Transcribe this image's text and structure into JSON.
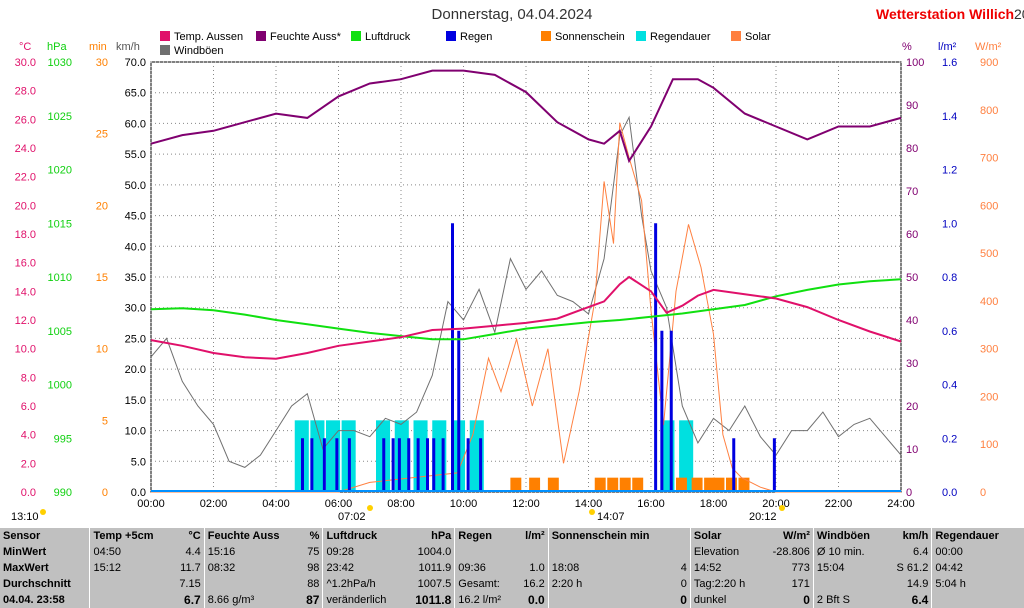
{
  "header": {
    "title": "Donnerstag, 04.04.2024",
    "station": "Wetterstation Willich",
    "station_extra": "20"
  },
  "legend": [
    {
      "label": "Temp. Aussen",
      "color": "#e0106a"
    },
    {
      "label": "Feuchte Auss*",
      "color": "#800070"
    },
    {
      "label": "Luftdruck",
      "color": "#10e010"
    },
    {
      "label": "Regen",
      "color": "#0000e0"
    },
    {
      "label": "Sonnenschein",
      "color": "#ff8000"
    },
    {
      "label": "Regendauer",
      "color": "#00e0e0"
    },
    {
      "label": "Solar",
      "color": "#ff8040"
    },
    {
      "label": "Windböen",
      "color": "#707070"
    }
  ],
  "axis_units": {
    "temp": "°C",
    "hpa": "hPa",
    "min": "min",
    "kmh": "km/h",
    "pct": "%",
    "lm2": "l/m²",
    "wm2": "W/m²"
  },
  "markers": {
    "sunrise": "07:02",
    "noon": "14:07",
    "sunset": "20:12",
    "left_time": "13:10"
  },
  "chart_data": {
    "type": "line",
    "x_ticks": [
      "00:00",
      "02:00",
      "04:00",
      "06:00",
      "08:00",
      "10:00",
      "12:00",
      "14:00",
      "16:00",
      "18:00",
      "20:00",
      "22:00",
      "24:00"
    ],
    "axes": {
      "temp": {
        "ticks": [
          "30.0",
          "28.0",
          "26.0",
          "24.0",
          "22.0",
          "20.0",
          "18.0",
          "16.0",
          "14.0",
          "12.0",
          "10.0",
          "8.0",
          "6.0",
          "4.0",
          "2.0",
          "0.0"
        ],
        "color": "#e0106a"
      },
      "hpa": {
        "ticks": [
          "1030",
          "1025",
          "1020",
          "1015",
          "1010",
          "1005",
          "1000",
          "995",
          "990"
        ],
        "color": "#10d010"
      },
      "min": {
        "ticks": [
          "30",
          "25",
          "20",
          "15",
          "10",
          "5",
          "0"
        ],
        "color": "#ff8000"
      },
      "kmh": {
        "ticks": [
          "70.0",
          "65.0",
          "60.0",
          "55.0",
          "50.0",
          "45.0",
          "40.0",
          "35.0",
          "30.0",
          "25.0",
          "20.0",
          "15.0",
          "10.0",
          "5.0",
          "0.0"
        ],
        "color": "#000000"
      },
      "pct": {
        "ticks": [
          "100",
          "90",
          "80",
          "70",
          "60",
          "50",
          "40",
          "30",
          "20",
          "10",
          "0"
        ],
        "color": "#800070"
      },
      "lm2": {
        "ticks": [
          "1.6",
          "1.4",
          "1.2",
          "1.0",
          "0.8",
          "0.6",
          "0.4",
          "0.2",
          "0.0"
        ],
        "color": "#0000c0"
      },
      "wm2": {
        "ticks": [
          "900",
          "800",
          "700",
          "600",
          "500",
          "400",
          "300",
          "200",
          "100",
          "0"
        ],
        "color": "#ff8040"
      }
    },
    "series": [
      {
        "name": "Temp. Aussen",
        "unit": "°C",
        "x": [
          0,
          1,
          2,
          3,
          4,
          5,
          6,
          7,
          8,
          9,
          10,
          11,
          12,
          13,
          14,
          14.5,
          15,
          15.3,
          16,
          16.5,
          17,
          17.5,
          18,
          19,
          20,
          21,
          22,
          23,
          24
        ],
        "y": [
          10.6,
          10.2,
          9.7,
          9.4,
          9.3,
          9.7,
          10.2,
          10.5,
          10.8,
          11.3,
          11.4,
          11.6,
          11.8,
          12.1,
          12.9,
          13.3,
          14.5,
          15.0,
          14.0,
          12.5,
          13.0,
          13.7,
          14.1,
          13.8,
          13.5,
          12.9,
          12.0,
          11.2,
          10.5
        ]
      },
      {
        "name": "Feuchte Auss*",
        "unit": "%",
        "x": [
          0,
          1,
          2,
          3,
          4,
          5,
          6,
          7,
          8,
          9,
          10,
          11,
          12,
          13,
          14,
          14.5,
          15,
          15.3,
          16,
          16.7,
          17.5,
          18,
          19,
          20,
          21,
          22,
          23,
          24
        ],
        "y": [
          81,
          83,
          84,
          86,
          88,
          87,
          92,
          95,
          96,
          98,
          98,
          97,
          93,
          86,
          82,
          81,
          84,
          77,
          85,
          96,
          96,
          94,
          88,
          85,
          82,
          85,
          85,
          87
        ]
      },
      {
        "name": "Luftdruck",
        "unit": "hPa",
        "x": [
          0,
          1,
          2,
          3,
          4,
          5,
          6,
          7,
          8,
          9,
          10,
          11,
          12,
          13,
          14,
          15,
          16,
          17,
          18,
          19,
          20,
          21,
          22,
          23,
          24
        ],
        "y": [
          1007.0,
          1007.1,
          1006.9,
          1006.5,
          1006.0,
          1005.6,
          1005.2,
          1004.8,
          1004.5,
          1004.2,
          1004.2,
          1004.7,
          1005.2,
          1005.5,
          1005.8,
          1006.0,
          1006.3,
          1006.6,
          1007.0,
          1007.4,
          1008.2,
          1008.8,
          1009.3,
          1009.6,
          1009.8
        ]
      },
      {
        "name": "Regen",
        "unit": "l/m²",
        "bars": [
          [
            4.8,
            0.2
          ],
          [
            5.1,
            0.2
          ],
          [
            5.5,
            0.2
          ],
          [
            5.9,
            0.2
          ],
          [
            6.3,
            0.2
          ],
          [
            7.4,
            0.2
          ],
          [
            7.7,
            0.2
          ],
          [
            7.9,
            0.2
          ],
          [
            8.2,
            0.2
          ],
          [
            8.5,
            0.2
          ],
          [
            8.8,
            0.2
          ],
          [
            9.0,
            0.2
          ],
          [
            9.3,
            0.2
          ],
          [
            9.6,
            1.0
          ],
          [
            9.8,
            0.6
          ],
          [
            10.1,
            0.2
          ],
          [
            10.5,
            0.2
          ],
          [
            16.1,
            1.0
          ],
          [
            16.3,
            0.6
          ],
          [
            16.6,
            0.6
          ],
          [
            18.6,
            0.2
          ],
          [
            19.9,
            0.2
          ]
        ]
      },
      {
        "name": "Sonnenschein",
        "unit": "min",
        "bars": [
          [
            11.5,
            1
          ],
          [
            12.1,
            1
          ],
          [
            12.7,
            1
          ],
          [
            14.2,
            1
          ],
          [
            14.6,
            1
          ],
          [
            15.0,
            1
          ],
          [
            15.4,
            1
          ],
          [
            16.8,
            1
          ],
          [
            17.3,
            1
          ],
          [
            17.7,
            1
          ],
          [
            18.0,
            1
          ],
          [
            18.4,
            1
          ],
          [
            18.8,
            1
          ]
        ]
      },
      {
        "name": "Regendauer",
        "unit": "min",
        "bars": [
          [
            4.6,
            5
          ],
          [
            5.1,
            5
          ],
          [
            5.6,
            5
          ],
          [
            6.1,
            5
          ],
          [
            7.2,
            5
          ],
          [
            7.8,
            5
          ],
          [
            8.4,
            5
          ],
          [
            9.0,
            5
          ],
          [
            9.6,
            5
          ],
          [
            10.2,
            5
          ],
          [
            16.3,
            5
          ],
          [
            16.9,
            5
          ]
        ]
      },
      {
        "name": "Solar",
        "unit": "W/m²",
        "x": [
          0,
          6,
          7,
          9.8,
          10.3,
          10.8,
          11.2,
          11.7,
          12.2,
          12.7,
          13.2,
          13.7,
          14.2,
          14.5,
          14.8,
          15.0,
          15.3,
          15.7,
          16.0,
          16.4,
          16.8,
          17.2,
          17.6,
          18.0,
          18.3,
          18.6,
          18.9,
          19.5,
          20,
          24
        ],
        "y": [
          0,
          0,
          20,
          40,
          120,
          280,
          210,
          320,
          180,
          300,
          60,
          210,
          400,
          650,
          520,
          773,
          700,
          610,
          380,
          140,
          420,
          560,
          470,
          330,
          120,
          50,
          30,
          10,
          0,
          0
        ]
      },
      {
        "name": "Windböen",
        "unit": "km/h",
        "x": [
          0,
          0.5,
          1,
          1.5,
          2,
          2.5,
          3,
          3.5,
          4,
          4.5,
          5,
          5.5,
          6,
          6.5,
          7,
          7.5,
          8,
          8.5,
          9,
          9.5,
          10,
          10.5,
          11,
          11.5,
          12,
          12.5,
          13,
          13.5,
          14,
          14.5,
          15,
          15.3,
          15.7,
          16,
          16.5,
          17,
          17.5,
          18,
          18.5,
          19,
          19.5,
          20,
          20.5,
          21,
          21.5,
          22,
          22.5,
          23,
          23.5,
          24
        ],
        "y": [
          22,
          25,
          18,
          14,
          11,
          5,
          4,
          6,
          10,
          14,
          16,
          7,
          10,
          10,
          9,
          12,
          11,
          13,
          19,
          31,
          28,
          33,
          26,
          38,
          33,
          36,
          32,
          31,
          29,
          38,
          58,
          61,
          45,
          36,
          30,
          14,
          8,
          12,
          10,
          14,
          9,
          6,
          10,
          10,
          13,
          9,
          11,
          12,
          9,
          6
        ]
      }
    ]
  },
  "stats": {
    "headers": [
      {
        "a": "Sensor",
        "b": ""
      },
      {
        "a": "Temp +5cm",
        "b": "°C"
      },
      {
        "a": "Feuchte Auss",
        "b": "%"
      },
      {
        "a": "Luftdruck",
        "b": "hPa"
      },
      {
        "a": "Regen",
        "b": "l/m²"
      },
      {
        "a": "Sonnenschein min",
        "b": ""
      },
      {
        "a": "Solar",
        "b": "W/m²"
      },
      {
        "a": "Windböen",
        "b": "km/h"
      },
      {
        "a": "Regendauer",
        "b": ""
      }
    ],
    "rows": [
      {
        "label": "MinWert",
        "cells": [
          [
            "04:50",
            "4.4"
          ],
          [
            "15:16",
            "75"
          ],
          [
            "09:28",
            "1004.0"
          ],
          [
            "",
            ""
          ],
          [
            "",
            ""
          ],
          [
            "Elevation",
            "-28.806"
          ],
          [
            "Ø 10 min.",
            "6.4"
          ],
          [
            "00:00",
            ""
          ]
        ]
      },
      {
        "label": "MaxWert",
        "cells": [
          [
            "15:12",
            "11.7"
          ],
          [
            "08:32",
            "98"
          ],
          [
            "23:42",
            "1011.9"
          ],
          [
            "09:36",
            "1.0"
          ],
          [
            "18:08",
            "4"
          ],
          [
            "14:52",
            "773"
          ],
          [
            "15:04",
            "S 61.2"
          ],
          [
            "04:42",
            ""
          ]
        ]
      },
      {
        "label": "Durchschnitt",
        "cells": [
          [
            "",
            "7.15"
          ],
          [
            "",
            "88"
          ],
          [
            "^1.2hPa/h",
            "1007.5"
          ],
          [
            "Gesamt:",
            "16.2"
          ],
          [
            "2:20 h",
            "0"
          ],
          [
            "Tag:2:20 h",
            "171"
          ],
          [
            "",
            "14.9"
          ],
          [
            "5:04 h",
            ""
          ]
        ]
      },
      {
        "label": "04.04. 23:58",
        "cells": [
          [
            "",
            "6.7"
          ],
          [
            "8.66 g/m³",
            "87"
          ],
          [
            "veränderlich",
            "1011.8"
          ],
          [
            "16.2 l/m²",
            "0.0"
          ],
          [
            "",
            "0"
          ],
          [
            "dunkel",
            "0"
          ],
          [
            "2 Bft S",
            "6.4"
          ],
          [
            "",
            ""
          ]
        ]
      }
    ]
  }
}
